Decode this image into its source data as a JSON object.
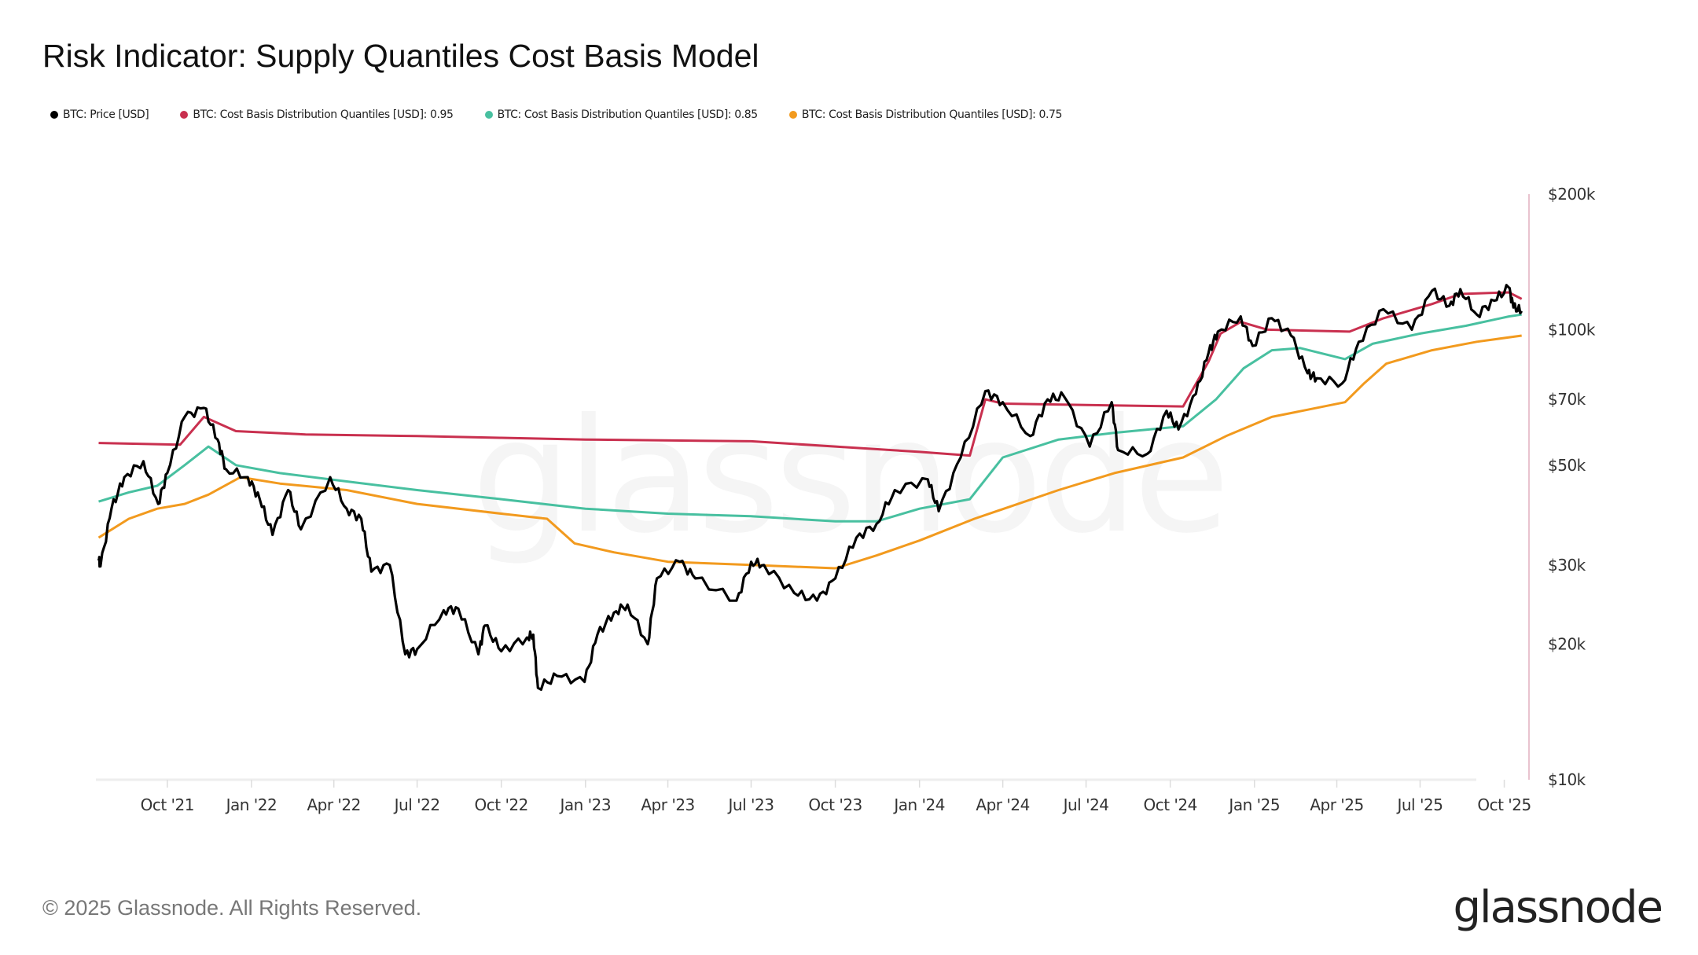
{
  "chart_data": {
    "type": "line",
    "title": "Risk Indicator: Supply Quantiles Cost Basis Model",
    "xlabel": "",
    "ylabel": "",
    "yscale": "log",
    "ylim": [
      10000,
      200000
    ],
    "xlim": [
      "2021-07-15",
      "2025-10-22"
    ],
    "y_ticks": [
      {
        "v": 10000,
        "label": "$10k"
      },
      {
        "v": 20000,
        "label": "$20k"
      },
      {
        "v": 30000,
        "label": "$30k"
      },
      {
        "v": 50000,
        "label": "$50k"
      },
      {
        "v": 70000,
        "label": "$70k"
      },
      {
        "v": 100000,
        "label": "$100k"
      },
      {
        "v": 200000,
        "label": "$200k"
      }
    ],
    "x_ticks": [
      {
        "d": "2021-10-01",
        "label": "Oct '21"
      },
      {
        "d": "2022-01-01",
        "label": "Jan '22"
      },
      {
        "d": "2022-04-01",
        "label": "Apr '22"
      },
      {
        "d": "2022-07-01",
        "label": "Jul '22"
      },
      {
        "d": "2022-10-01",
        "label": "Oct '22"
      },
      {
        "d": "2023-01-01",
        "label": "Jan '23"
      },
      {
        "d": "2023-04-01",
        "label": "Apr '23"
      },
      {
        "d": "2023-07-01",
        "label": "Jul '23"
      },
      {
        "d": "2023-10-01",
        "label": "Oct '23"
      },
      {
        "d": "2024-01-01",
        "label": "Jan '24"
      },
      {
        "d": "2024-04-01",
        "label": "Apr '24"
      },
      {
        "d": "2024-07-01",
        "label": "Jul '24"
      },
      {
        "d": "2024-10-01",
        "label": "Oct '24"
      },
      {
        "d": "2025-01-01",
        "label": "Jan '25"
      },
      {
        "d": "2025-04-01",
        "label": "Apr '25"
      },
      {
        "d": "2025-07-01",
        "label": "Jul '25"
      },
      {
        "d": "2025-10-01",
        "label": "Oct '25"
      }
    ],
    "legend_position": "top-left",
    "series": [
      {
        "name": "BTC: Price [USD]",
        "color": "#000000",
        "points": [
          [
            "2021-07-18",
            31000
          ],
          [
            "2021-07-20",
            29800
          ],
          [
            "2021-08-01",
            40000
          ],
          [
            "2021-08-15",
            47000
          ],
          [
            "2021-09-05",
            51000
          ],
          [
            "2021-09-21",
            41000
          ],
          [
            "2021-10-01",
            48000
          ],
          [
            "2021-10-20",
            64000
          ],
          [
            "2021-11-10",
            67000
          ],
          [
            "2021-11-25",
            57000
          ],
          [
            "2021-12-04",
            49000
          ],
          [
            "2021-12-28",
            47000
          ],
          [
            "2022-01-10",
            42000
          ],
          [
            "2022-01-24",
            35000
          ],
          [
            "2022-02-10",
            44000
          ],
          [
            "2022-02-24",
            36000
          ],
          [
            "2022-03-28",
            47000
          ],
          [
            "2022-04-15",
            40000
          ],
          [
            "2022-05-01",
            38000
          ],
          [
            "2022-05-12",
            29000
          ],
          [
            "2022-06-01",
            30000
          ],
          [
            "2022-06-18",
            19000
          ],
          [
            "2022-07-01",
            19500
          ],
          [
            "2022-07-30",
            23800
          ],
          [
            "2022-08-15",
            24000
          ],
          [
            "2022-09-06",
            19000
          ],
          [
            "2022-09-13",
            22000
          ],
          [
            "2022-10-01",
            19300
          ],
          [
            "2022-10-29",
            20700
          ],
          [
            "2022-11-05",
            21000
          ],
          [
            "2022-11-10",
            16000
          ],
          [
            "2022-12-01",
            17000
          ],
          [
            "2022-12-31",
            16500
          ],
          [
            "2023-01-14",
            21000
          ],
          [
            "2023-02-01",
            23500
          ],
          [
            "2023-02-16",
            24500
          ],
          [
            "2023-03-10",
            20000
          ],
          [
            "2023-03-20",
            28000
          ],
          [
            "2023-04-14",
            30500
          ],
          [
            "2023-05-01",
            28000
          ],
          [
            "2023-06-15",
            25000
          ],
          [
            "2023-07-01",
            30500
          ],
          [
            "2023-07-15",
            30000
          ],
          [
            "2023-08-17",
            26000
          ],
          [
            "2023-09-11",
            25000
          ],
          [
            "2023-10-01",
            28000
          ],
          [
            "2023-10-24",
            34500
          ],
          [
            "2023-11-15",
            37000
          ],
          [
            "2023-12-05",
            44000
          ],
          [
            "2024-01-10",
            46500
          ],
          [
            "2024-01-22",
            39500
          ],
          [
            "2024-02-15",
            52000
          ],
          [
            "2024-03-13",
            73000
          ],
          [
            "2024-04-01",
            69000
          ],
          [
            "2024-05-01",
            58000
          ],
          [
            "2024-05-20",
            70000
          ],
          [
            "2024-06-07",
            71000
          ],
          [
            "2024-07-05",
            55000
          ],
          [
            "2024-07-29",
            69000
          ],
          [
            "2024-08-05",
            54000
          ],
          [
            "2024-09-06",
            53000
          ],
          [
            "2024-09-27",
            66000
          ],
          [
            "2024-10-10",
            60000
          ],
          [
            "2024-10-29",
            72000
          ],
          [
            "2024-11-12",
            89000
          ],
          [
            "2024-11-22",
            99000
          ],
          [
            "2024-12-17",
            107000
          ],
          [
            "2024-12-30",
            92000
          ],
          [
            "2025-01-20",
            106000
          ],
          [
            "2025-02-10",
            97000
          ],
          [
            "2025-02-28",
            80000
          ],
          [
            "2025-03-10",
            78000
          ],
          [
            "2025-04-07",
            76000
          ],
          [
            "2025-04-25",
            94000
          ],
          [
            "2025-05-22",
            111000
          ],
          [
            "2025-06-22",
            100000
          ],
          [
            "2025-07-14",
            122000
          ],
          [
            "2025-08-02",
            113000
          ],
          [
            "2025-08-14",
            123000
          ],
          [
            "2025-09-01",
            108000
          ],
          [
            "2025-09-20",
            116000
          ],
          [
            "2025-10-06",
            124000
          ],
          [
            "2025-10-11",
            112000
          ],
          [
            "2025-10-20",
            110000
          ]
        ]
      },
      {
        "name": "BTC: Cost Basis Distribution Quantiles [USD]: 0.95",
        "color": "#c9304f",
        "points": [
          [
            "2021-07-18",
            56000
          ],
          [
            "2021-10-15",
            55500
          ],
          [
            "2021-11-10",
            64000
          ],
          [
            "2021-12-15",
            59500
          ],
          [
            "2022-03-01",
            58500
          ],
          [
            "2022-07-01",
            58000
          ],
          [
            "2022-10-01",
            57500
          ],
          [
            "2023-01-01",
            57000
          ],
          [
            "2023-07-01",
            56500
          ],
          [
            "2023-10-01",
            55000
          ],
          [
            "2024-01-01",
            53500
          ],
          [
            "2024-02-25",
            52500
          ],
          [
            "2024-03-13",
            70000
          ],
          [
            "2024-04-01",
            68500
          ],
          [
            "2024-07-01",
            68000
          ],
          [
            "2024-10-15",
            67500
          ],
          [
            "2024-11-12",
            85000
          ],
          [
            "2024-11-25",
            98000
          ],
          [
            "2024-12-17",
            104000
          ],
          [
            "2025-01-15",
            100000
          ],
          [
            "2025-04-15",
            99000
          ],
          [
            "2025-05-22",
            106000
          ],
          [
            "2025-07-14",
            114000
          ],
          [
            "2025-08-14",
            120000
          ],
          [
            "2025-10-06",
            121000
          ],
          [
            "2025-10-20",
            117000
          ]
        ]
      },
      {
        "name": "BTC: Cost Basis Distribution Quantiles [USD]: 0.85",
        "color": "#48c0a0",
        "points": [
          [
            "2021-07-18",
            41500
          ],
          [
            "2021-08-20",
            43500
          ],
          [
            "2021-09-20",
            45000
          ],
          [
            "2021-10-20",
            50000
          ],
          [
            "2021-11-15",
            55000
          ],
          [
            "2021-12-15",
            50000
          ],
          [
            "2022-02-01",
            48000
          ],
          [
            "2022-04-15",
            46000
          ],
          [
            "2022-07-01",
            44000
          ],
          [
            "2022-10-01",
            42000
          ],
          [
            "2023-01-01",
            40000
          ],
          [
            "2023-04-01",
            39000
          ],
          [
            "2023-07-01",
            38500
          ],
          [
            "2023-10-01",
            37500
          ],
          [
            "2023-11-15",
            37500
          ],
          [
            "2024-01-01",
            40000
          ],
          [
            "2024-02-25",
            42000
          ],
          [
            "2024-04-01",
            52000
          ],
          [
            "2024-06-01",
            57000
          ],
          [
            "2024-08-01",
            59000
          ],
          [
            "2024-10-15",
            61000
          ],
          [
            "2024-11-20",
            70000
          ],
          [
            "2024-12-20",
            82000
          ],
          [
            "2025-01-20",
            90000
          ],
          [
            "2025-02-20",
            91000
          ],
          [
            "2025-04-10",
            86000
          ],
          [
            "2025-05-10",
            93000
          ],
          [
            "2025-07-01",
            98000
          ],
          [
            "2025-08-20",
            102000
          ],
          [
            "2025-10-06",
            107000
          ],
          [
            "2025-10-20",
            108000
          ]
        ]
      },
      {
        "name": "BTC: Cost Basis Distribution Quantiles [USD]: 0.75",
        "color": "#f29a1e",
        "points": [
          [
            "2021-07-18",
            34500
          ],
          [
            "2021-08-20",
            38000
          ],
          [
            "2021-09-20",
            40000
          ],
          [
            "2021-10-20",
            41000
          ],
          [
            "2021-11-15",
            43000
          ],
          [
            "2021-12-20",
            47000
          ],
          [
            "2022-02-01",
            45500
          ],
          [
            "2022-04-15",
            44000
          ],
          [
            "2022-07-01",
            41000
          ],
          [
            "2022-10-01",
            39000
          ],
          [
            "2022-11-20",
            38000
          ],
          [
            "2022-12-20",
            33500
          ],
          [
            "2023-02-01",
            32000
          ],
          [
            "2023-04-01",
            30500
          ],
          [
            "2023-07-01",
            30000
          ],
          [
            "2023-10-01",
            29500
          ],
          [
            "2023-11-15",
            31500
          ],
          [
            "2024-01-01",
            34000
          ],
          [
            "2024-03-01",
            38000
          ],
          [
            "2024-06-01",
            44000
          ],
          [
            "2024-08-01",
            48000
          ],
          [
            "2024-10-15",
            52000
          ],
          [
            "2024-12-01",
            58000
          ],
          [
            "2025-01-20",
            64000
          ],
          [
            "2025-04-10",
            69000
          ],
          [
            "2025-05-01",
            76000
          ],
          [
            "2025-05-25",
            84000
          ],
          [
            "2025-07-14",
            90000
          ],
          [
            "2025-09-01",
            94000
          ],
          [
            "2025-10-20",
            97000
          ]
        ]
      }
    ]
  },
  "legend": [
    {
      "label": "BTC: Price [USD]",
      "color": "#000000"
    },
    {
      "label": "BTC: Cost Basis Distribution Quantiles [USD]: 0.95",
      "color": "#c9304f"
    },
    {
      "label": "BTC: Cost Basis Distribution Quantiles [USD]: 0.85",
      "color": "#48c0a0"
    },
    {
      "label": "BTC: Cost Basis Distribution Quantiles [USD]: 0.75",
      "color": "#f29a1e"
    }
  ],
  "footer": {
    "copyright": "© 2025 Glassnode. All Rights Reserved.",
    "logo": "glassnode",
    "watermark": "glassnode"
  }
}
